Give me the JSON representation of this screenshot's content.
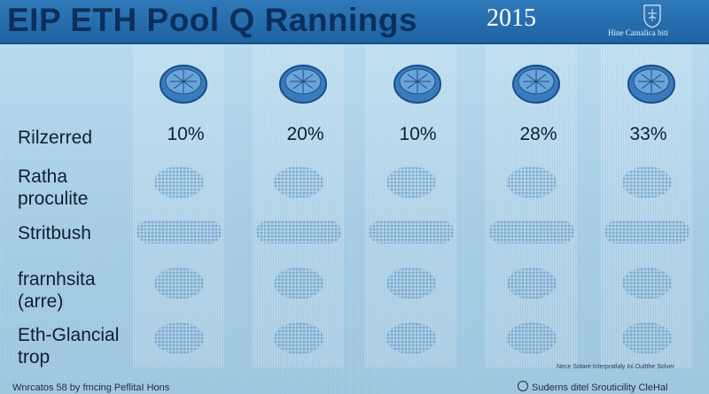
{
  "header": {
    "title": "EIP ETH Pool Q Rannings",
    "year": "2015",
    "org": "Hine Camalica biti",
    "emblem_icon": "crest-icon"
  },
  "columns": [
    {
      "percent": "10%",
      "coin_icon": "coin-icon"
    },
    {
      "percent": "20%",
      "coin_icon": "coin-icon"
    },
    {
      "percent": "10%",
      "coin_icon": "coin-icon"
    },
    {
      "percent": "28%",
      "coin_icon": "coin-icon"
    },
    {
      "percent": "33%",
      "coin_icon": "coin-icon"
    }
  ],
  "rows": [
    {
      "label": "Rilzerred"
    },
    {
      "label": "Ratha\nproculite"
    },
    {
      "label": "Stritbush"
    },
    {
      "label": "frarnhsita\n(arre)"
    },
    {
      "label": "Eth-Glancial\ntrop"
    }
  ],
  "footer": {
    "left": "Wnrcatos 58 by fmcing PeflitaI Hons",
    "note": "Nece Sotare Interpratlaly Ini Oultthe Solver",
    "right": "Suderns ditel Srouticility CleHal"
  },
  "colors": {
    "header_bg": "#2f79b9",
    "title_text": "#0c2f5b",
    "page_bg": "#a7cfe6"
  }
}
